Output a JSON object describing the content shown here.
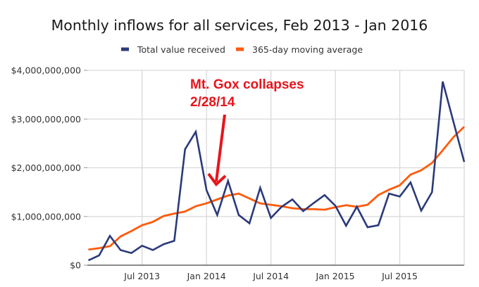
{
  "chart_data": {
    "type": "line",
    "title": "Monthly inflows for all services, Feb 2013 - Jan 2016",
    "xlabel": "",
    "ylabel": "",
    "ylim": [
      0,
      4000000000
    ],
    "grid": true,
    "legend_position": "top-center",
    "x": [
      "Feb 2013",
      "Mar 2013",
      "Apr 2013",
      "May 2013",
      "Jun 2013",
      "Jul 2013",
      "Aug 2013",
      "Sep 2013",
      "Oct 2013",
      "Nov 2013",
      "Dec 2013",
      "Jan 2014",
      "Feb 2014",
      "Mar 2014",
      "Apr 2014",
      "May 2014",
      "Jun 2014",
      "Jul 2014",
      "Aug 2014",
      "Sep 2014",
      "Oct 2014",
      "Nov 2014",
      "Dec 2014",
      "Jan 2015",
      "Feb 2015",
      "Mar 2015",
      "Apr 2015",
      "May 2015",
      "Jun 2015",
      "Jul 2015",
      "Aug 2015",
      "Sep 2015",
      "Oct 2015",
      "Nov 2015",
      "Dec 2015",
      "Jan 2016"
    ],
    "x_ticks": [
      {
        "label": "Jul 2013",
        "index": 5
      },
      {
        "label": "Jan 2014",
        "index": 11
      },
      {
        "label": "Jul 2014",
        "index": 17
      },
      {
        "label": "Jan 2015",
        "index": 23
      },
      {
        "label": "Jul 2015",
        "index": 29
      }
    ],
    "y_ticks": [
      {
        "label": "$0",
        "value": 0
      },
      {
        "label": "$1,000,000,000",
        "value": 1000000000
      },
      {
        "label": "$2,000,000,000",
        "value": 2000000000
      },
      {
        "label": "$3,000,000,000",
        "value": 3000000000
      },
      {
        "label": "$4,000,000,000",
        "value": 4000000000
      }
    ],
    "series": [
      {
        "name": "Total value received",
        "color": "#2b3a7a",
        "values": [
          100000000,
          200000000,
          600000000,
          310000000,
          250000000,
          400000000,
          310000000,
          430000000,
          500000000,
          2380000000,
          2740000000,
          1540000000,
          1030000000,
          1730000000,
          1030000000,
          860000000,
          1590000000,
          970000000,
          1200000000,
          1350000000,
          1110000000,
          1280000000,
          1440000000,
          1220000000,
          810000000,
          1200000000,
          780000000,
          820000000,
          1470000000,
          1410000000,
          1700000000,
          1120000000,
          1500000000,
          3770000000,
          2940000000,
          2120000000
        ]
      },
      {
        "name": "365-day moving average",
        "color": "#ff5a0a",
        "values": [
          320000000,
          350000000,
          390000000,
          590000000,
          700000000,
          820000000,
          890000000,
          1010000000,
          1060000000,
          1100000000,
          1210000000,
          1270000000,
          1350000000,
          1430000000,
          1470000000,
          1370000000,
          1270000000,
          1240000000,
          1210000000,
          1170000000,
          1150000000,
          1150000000,
          1140000000,
          1190000000,
          1230000000,
          1200000000,
          1240000000,
          1440000000,
          1550000000,
          1640000000,
          1860000000,
          1950000000,
          2100000000,
          2360000000,
          2630000000,
          2840000000
        ]
      }
    ],
    "annotations": [
      {
        "lines": [
          "Mt. Gox collapses",
          "2/28/14"
        ],
        "color": "#e8141c",
        "points_to": "Feb 2014"
      }
    ]
  }
}
